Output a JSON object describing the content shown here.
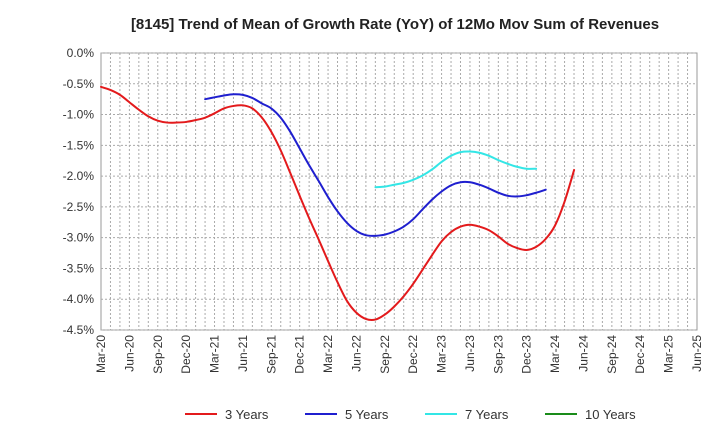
{
  "chart_data": {
    "type": "line",
    "title": "[8145]  Trend of Mean of Growth Rate (YoY) of 12Mo Mov Sum of Revenues",
    "xlabel": "",
    "ylabel": "",
    "ylim": [
      -4.5,
      0.0
    ],
    "y_ticks": [
      0.0,
      -0.5,
      -1.0,
      -1.5,
      -2.0,
      -2.5,
      -3.0,
      -3.5,
      -4.0,
      -4.5
    ],
    "y_tick_labels": [
      "0.0%",
      "-0.5%",
      "-1.0%",
      "-1.5%",
      "-2.0%",
      "-2.5%",
      "-3.0%",
      "-3.5%",
      "-4.0%",
      "-4.5%"
    ],
    "x_tick_labels": [
      "Mar-20",
      "Jun-20",
      "Sep-20",
      "Dec-20",
      "Mar-21",
      "Jun-21",
      "Sep-21",
      "Dec-21",
      "Mar-22",
      "Jun-22",
      "Sep-22",
      "Dec-22",
      "Mar-23",
      "Jun-23",
      "Sep-23",
      "Dec-23",
      "Mar-24",
      "Jun-24",
      "Sep-24",
      "Dec-24",
      "Mar-25",
      "Jun-25"
    ],
    "x_range": [
      0,
      21
    ],
    "grid": true,
    "legend_position": "bottom",
    "series": [
      {
        "name": "3 Years",
        "color": "#e31a1c",
        "points": [
          [
            0,
            -0.55
          ],
          [
            0.33,
            -0.6
          ],
          [
            0.67,
            -0.68
          ],
          [
            1,
            -0.8
          ],
          [
            1.33,
            -0.92
          ],
          [
            1.67,
            -1.03
          ],
          [
            2,
            -1.1
          ],
          [
            2.33,
            -1.13
          ],
          [
            2.67,
            -1.13
          ],
          [
            3,
            -1.12
          ],
          [
            3.33,
            -1.09
          ],
          [
            3.67,
            -1.05
          ],
          [
            4,
            -0.98
          ],
          [
            4.33,
            -0.9
          ],
          [
            4.67,
            -0.86
          ],
          [
            5,
            -0.85
          ],
          [
            5.33,
            -0.9
          ],
          [
            5.67,
            -1.05
          ],
          [
            6,
            -1.28
          ],
          [
            6.33,
            -1.58
          ],
          [
            6.67,
            -1.95
          ],
          [
            7,
            -2.32
          ],
          [
            7.33,
            -2.68
          ],
          [
            7.67,
            -3.03
          ],
          [
            8,
            -3.38
          ],
          [
            8.33,
            -3.72
          ],
          [
            8.67,
            -4.03
          ],
          [
            9,
            -4.22
          ],
          [
            9.33,
            -4.32
          ],
          [
            9.67,
            -4.33
          ],
          [
            10,
            -4.25
          ],
          [
            10.33,
            -4.12
          ],
          [
            10.67,
            -3.95
          ],
          [
            11,
            -3.75
          ],
          [
            11.33,
            -3.52
          ],
          [
            11.67,
            -3.28
          ],
          [
            12,
            -3.06
          ],
          [
            12.33,
            -2.91
          ],
          [
            12.67,
            -2.82
          ],
          [
            13,
            -2.79
          ],
          [
            13.33,
            -2.82
          ],
          [
            13.67,
            -2.88
          ],
          [
            14,
            -2.98
          ],
          [
            14.33,
            -3.1
          ],
          [
            14.67,
            -3.17
          ],
          [
            15,
            -3.2
          ],
          [
            15.33,
            -3.15
          ],
          [
            15.67,
            -3.02
          ],
          [
            16,
            -2.8
          ],
          [
            16.33,
            -2.42
          ],
          [
            16.67,
            -1.9
          ]
        ]
      },
      {
        "name": "5 Years",
        "color": "#1f1fcf",
        "points": [
          [
            3.67,
            -0.75
          ],
          [
            4,
            -0.72
          ],
          [
            4.33,
            -0.69
          ],
          [
            4.67,
            -0.67
          ],
          [
            5,
            -0.68
          ],
          [
            5.33,
            -0.73
          ],
          [
            5.67,
            -0.82
          ],
          [
            6,
            -0.9
          ],
          [
            6.33,
            -1.05
          ],
          [
            6.67,
            -1.28
          ],
          [
            7,
            -1.55
          ],
          [
            7.33,
            -1.82
          ],
          [
            7.67,
            -2.08
          ],
          [
            8,
            -2.34
          ],
          [
            8.33,
            -2.57
          ],
          [
            8.67,
            -2.76
          ],
          [
            9,
            -2.89
          ],
          [
            9.33,
            -2.96
          ],
          [
            9.67,
            -2.97
          ],
          [
            10,
            -2.95
          ],
          [
            10.33,
            -2.9
          ],
          [
            10.67,
            -2.82
          ],
          [
            11,
            -2.7
          ],
          [
            11.33,
            -2.54
          ],
          [
            11.67,
            -2.38
          ],
          [
            12,
            -2.25
          ],
          [
            12.33,
            -2.15
          ],
          [
            12.67,
            -2.1
          ],
          [
            13,
            -2.1
          ],
          [
            13.33,
            -2.14
          ],
          [
            13.67,
            -2.2
          ],
          [
            14,
            -2.27
          ],
          [
            14.33,
            -2.32
          ],
          [
            14.67,
            -2.33
          ],
          [
            15,
            -2.31
          ],
          [
            15.33,
            -2.27
          ],
          [
            15.67,
            -2.22
          ]
        ]
      },
      {
        "name": "7 Years",
        "color": "#33e6e6",
        "points": [
          [
            9.67,
            -2.18
          ],
          [
            10,
            -2.17
          ],
          [
            10.33,
            -2.14
          ],
          [
            10.67,
            -2.11
          ],
          [
            11,
            -2.06
          ],
          [
            11.33,
            -1.99
          ],
          [
            11.67,
            -1.89
          ],
          [
            12,
            -1.77
          ],
          [
            12.33,
            -1.67
          ],
          [
            12.67,
            -1.61
          ],
          [
            13,
            -1.6
          ],
          [
            13.33,
            -1.62
          ],
          [
            13.67,
            -1.67
          ],
          [
            14,
            -1.74
          ],
          [
            14.33,
            -1.8
          ],
          [
            14.67,
            -1.85
          ],
          [
            15,
            -1.88
          ],
          [
            15.33,
            -1.88
          ]
        ]
      },
      {
        "name": "10 Years",
        "color": "#1a8c1a",
        "points": []
      }
    ]
  }
}
